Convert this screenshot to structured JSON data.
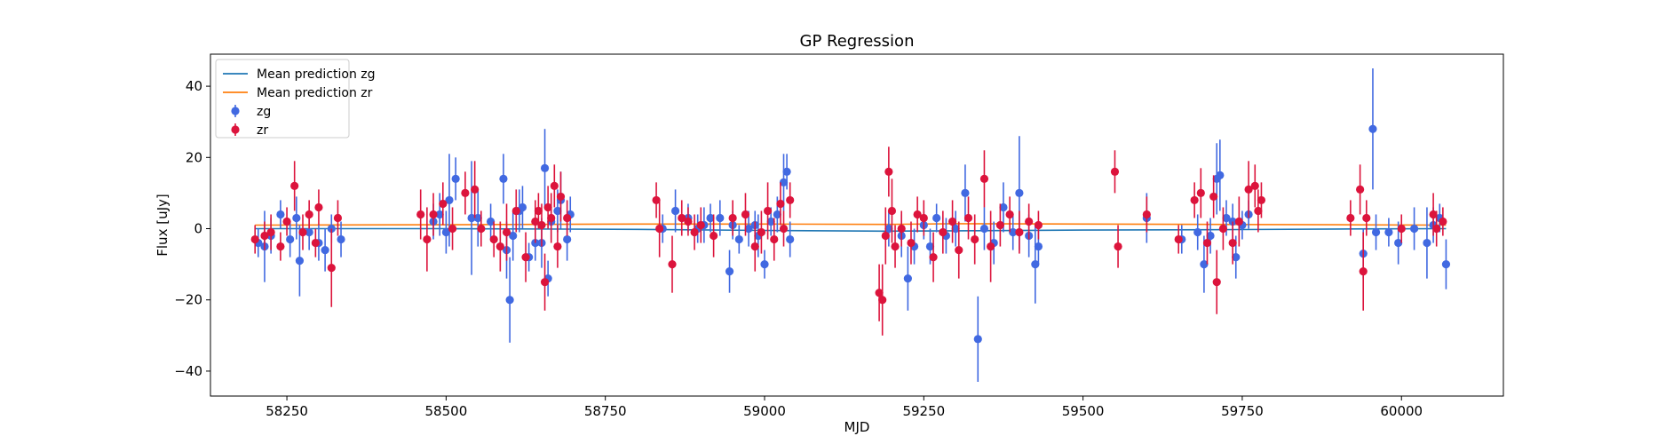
{
  "chart_data": {
    "type": "scatter",
    "title": "GP Regression",
    "xlabel": "MJD",
    "ylabel": "Flux [uJy]",
    "xlim": [
      58130,
      60160
    ],
    "ylim": [
      -47,
      49
    ],
    "xticks": [
      58250,
      58500,
      58750,
      59000,
      59250,
      59500,
      59750,
      60000
    ],
    "yticks": [
      -40,
      -20,
      0,
      20,
      40
    ],
    "grid": false,
    "legend_position": "top-left",
    "mean_lines": [
      {
        "name": "Mean prediction zg",
        "color": "#1f77b4",
        "points": [
          [
            58200,
            0.0
          ],
          [
            58500,
            0.0
          ],
          [
            58800,
            -0.2
          ],
          [
            59000,
            -0.5
          ],
          [
            59190,
            -0.7
          ],
          [
            59300,
            -0.6
          ],
          [
            59500,
            -0.4
          ],
          [
            59700,
            -0.3
          ],
          [
            59900,
            -0.1
          ],
          [
            60070,
            0.0
          ]
        ]
      },
      {
        "name": "Mean prediction zr",
        "color": "#ff7f0e",
        "points": [
          [
            58200,
            1.0
          ],
          [
            58500,
            1.1
          ],
          [
            58800,
            1.3
          ],
          [
            59000,
            1.3
          ],
          [
            59190,
            1.2
          ],
          [
            59300,
            1.4
          ],
          [
            59500,
            1.3
          ],
          [
            59700,
            1.2
          ],
          [
            59900,
            1.1
          ],
          [
            60070,
            1.0
          ]
        ]
      }
    ],
    "series": [
      {
        "name": "zg",
        "color": "#4169e1",
        "points": [
          [
            58205,
            -4,
            4
          ],
          [
            58215,
            -5,
            10
          ],
          [
            58225,
            -2,
            5
          ],
          [
            58240,
            4,
            4
          ],
          [
            58255,
            -3,
            5
          ],
          [
            58265,
            3,
            6
          ],
          [
            58270,
            -9,
            10
          ],
          [
            58285,
            -1,
            5
          ],
          [
            58300,
            -4,
            5
          ],
          [
            58310,
            -6,
            6
          ],
          [
            58320,
            0,
            4
          ],
          [
            58335,
            -3,
            5
          ],
          [
            58480,
            2,
            5
          ],
          [
            58490,
            4,
            6
          ],
          [
            58500,
            -1,
            6
          ],
          [
            58505,
            8,
            13
          ],
          [
            58515,
            14,
            6
          ],
          [
            58540,
            3,
            16
          ],
          [
            58550,
            3,
            8
          ],
          [
            58570,
            2,
            5
          ],
          [
            58590,
            14,
            7
          ],
          [
            58595,
            -6,
            8
          ],
          [
            58600,
            -20,
            12
          ],
          [
            58605,
            -2,
            7
          ],
          [
            58615,
            5,
            6
          ],
          [
            58620,
            6,
            6
          ],
          [
            58630,
            -8,
            4
          ],
          [
            58640,
            -4,
            5
          ],
          [
            58650,
            -4,
            7
          ],
          [
            58655,
            17,
            11
          ],
          [
            58660,
            -14,
            5
          ],
          [
            58665,
            2,
            5
          ],
          [
            58675,
            5,
            6
          ],
          [
            58680,
            8,
            8
          ],
          [
            58690,
            -3,
            6
          ],
          [
            58695,
            4,
            5
          ],
          [
            58840,
            0,
            4
          ],
          [
            58860,
            5,
            6
          ],
          [
            58880,
            3,
            4
          ],
          [
            58895,
            0,
            4
          ],
          [
            58905,
            1,
            5
          ],
          [
            58915,
            3,
            4
          ],
          [
            58930,
            3,
            5
          ],
          [
            58945,
            -12,
            6
          ],
          [
            58950,
            1,
            4
          ],
          [
            58960,
            -3,
            4
          ],
          [
            58975,
            0,
            5
          ],
          [
            58985,
            1,
            4
          ],
          [
            58990,
            -2,
            6
          ],
          [
            59000,
            -10,
            4
          ],
          [
            59010,
            2,
            4
          ],
          [
            59020,
            4,
            5
          ],
          [
            59030,
            13,
            8
          ],
          [
            59035,
            16,
            5
          ],
          [
            59040,
            -3,
            5
          ],
          [
            59195,
            0,
            5
          ],
          [
            59215,
            -2,
            6
          ],
          [
            59225,
            -14,
            9
          ],
          [
            59235,
            -5,
            5
          ],
          [
            59250,
            1,
            4
          ],
          [
            59260,
            -5,
            5
          ],
          [
            59270,
            3,
            4
          ],
          [
            59285,
            -2,
            5
          ],
          [
            59300,
            0,
            5
          ],
          [
            59315,
            10,
            8
          ],
          [
            59335,
            -31,
            12
          ],
          [
            59345,
            0,
            6
          ],
          [
            59360,
            -4,
            6
          ],
          [
            59375,
            6,
            7
          ],
          [
            59390,
            -1,
            5
          ],
          [
            59400,
            10,
            16
          ],
          [
            59415,
            -2,
            6
          ],
          [
            59425,
            -10,
            11
          ],
          [
            59430,
            -5,
            5
          ],
          [
            59600,
            3,
            7
          ],
          [
            59655,
            -3,
            4
          ],
          [
            59680,
            -1,
            5
          ],
          [
            59690,
            -10,
            8
          ],
          [
            59700,
            -2,
            5
          ],
          [
            59710,
            14,
            10
          ],
          [
            59715,
            15,
            10
          ],
          [
            59725,
            3,
            5
          ],
          [
            59735,
            2,
            5
          ],
          [
            59740,
            -8,
            6
          ],
          [
            59750,
            1,
            4
          ],
          [
            59760,
            4,
            4
          ],
          [
            59940,
            -7,
            7
          ],
          [
            59955,
            28,
            17
          ],
          [
            59960,
            -1,
            5
          ],
          [
            59980,
            -1,
            4
          ],
          [
            59995,
            -4,
            6
          ],
          [
            60020,
            0,
            6
          ],
          [
            60040,
            -4,
            10
          ],
          [
            60050,
            1,
            5
          ],
          [
            60060,
            3,
            4
          ],
          [
            60070,
            -10,
            7
          ]
        ]
      },
      {
        "name": "zr",
        "color": "#dc143c",
        "points": [
          [
            58200,
            -3,
            4
          ],
          [
            58215,
            -2,
            4
          ],
          [
            58225,
            -1,
            5
          ],
          [
            58240,
            -5,
            4
          ],
          [
            58250,
            2,
            4
          ],
          [
            58262,
            12,
            7
          ],
          [
            58275,
            -1,
            5
          ],
          [
            58285,
            4,
            4
          ],
          [
            58295,
            -4,
            4
          ],
          [
            58300,
            6,
            5
          ],
          [
            58320,
            -11,
            11
          ],
          [
            58330,
            3,
            5
          ],
          [
            58460,
            4,
            7
          ],
          [
            58470,
            -3,
            9
          ],
          [
            58480,
            4,
            6
          ],
          [
            58495,
            7,
            6
          ],
          [
            58510,
            0,
            6
          ],
          [
            58530,
            10,
            6
          ],
          [
            58545,
            11,
            8
          ],
          [
            58555,
            0,
            5
          ],
          [
            58575,
            -3,
            5
          ],
          [
            58585,
            -5,
            7
          ],
          [
            58595,
            -1,
            8
          ],
          [
            58610,
            5,
            6
          ],
          [
            58625,
            -8,
            7
          ],
          [
            58640,
            2,
            6
          ],
          [
            58645,
            5,
            5
          ],
          [
            58650,
            1,
            6
          ],
          [
            58655,
            -15,
            8
          ],
          [
            58660,
            6,
            6
          ],
          [
            58665,
            3,
            7
          ],
          [
            58670,
            12,
            6
          ],
          [
            58675,
            -5,
            6
          ],
          [
            58680,
            9,
            7
          ],
          [
            58690,
            3,
            5
          ],
          [
            58830,
            8,
            5
          ],
          [
            58835,
            0,
            8
          ],
          [
            58855,
            -10,
            8
          ],
          [
            58870,
            3,
            5
          ],
          [
            58880,
            2,
            4
          ],
          [
            58890,
            -1,
            5
          ],
          [
            58900,
            1,
            5
          ],
          [
            58920,
            -2,
            6
          ],
          [
            58950,
            3,
            5
          ],
          [
            58970,
            4,
            6
          ],
          [
            58985,
            -5,
            7
          ],
          [
            58995,
            -1,
            6
          ],
          [
            59005,
            5,
            8
          ],
          [
            59015,
            -3,
            6
          ],
          [
            59025,
            7,
            6
          ],
          [
            59030,
            0,
            5
          ],
          [
            59040,
            8,
            5
          ],
          [
            59180,
            -18,
            8
          ],
          [
            59185,
            -20,
            10
          ],
          [
            59190,
            -2,
            8
          ],
          [
            59195,
            16,
            7
          ],
          [
            59200,
            5,
            9
          ],
          [
            59205,
            -5,
            6
          ],
          [
            59215,
            0,
            5
          ],
          [
            59230,
            -4,
            6
          ],
          [
            59240,
            4,
            5
          ],
          [
            59250,
            3,
            5
          ],
          [
            59265,
            -8,
            7
          ],
          [
            59280,
            -1,
            6
          ],
          [
            59295,
            2,
            6
          ],
          [
            59305,
            -6,
            8
          ],
          [
            59320,
            3,
            6
          ],
          [
            59330,
            -3,
            7
          ],
          [
            59345,
            14,
            8
          ],
          [
            59355,
            -5,
            10
          ],
          [
            59370,
            1,
            6
          ],
          [
            59385,
            4,
            5
          ],
          [
            59400,
            -1,
            6
          ],
          [
            59415,
            2,
            5
          ],
          [
            59430,
            1,
            4
          ],
          [
            59550,
            16,
            6
          ],
          [
            59555,
            -5,
            6
          ],
          [
            59600,
            4,
            5
          ],
          [
            59650,
            -3,
            4
          ],
          [
            59675,
            8,
            5
          ],
          [
            59685,
            10,
            7
          ],
          [
            59695,
            -4,
            6
          ],
          [
            59705,
            9,
            6
          ],
          [
            59710,
            -15,
            9
          ],
          [
            59720,
            0,
            6
          ],
          [
            59735,
            -4,
            6
          ],
          [
            59745,
            2,
            7
          ],
          [
            59760,
            11,
            8
          ],
          [
            59770,
            12,
            6
          ],
          [
            59775,
            5,
            6
          ],
          [
            59780,
            8,
            5
          ],
          [
            59920,
            3,
            5
          ],
          [
            59935,
            11,
            7
          ],
          [
            59940,
            -12,
            11
          ],
          [
            59945,
            3,
            5
          ],
          [
            60000,
            0,
            4
          ],
          [
            60050,
            4,
            6
          ],
          [
            60055,
            0,
            5
          ],
          [
            60065,
            2,
            4
          ]
        ]
      }
    ]
  }
}
